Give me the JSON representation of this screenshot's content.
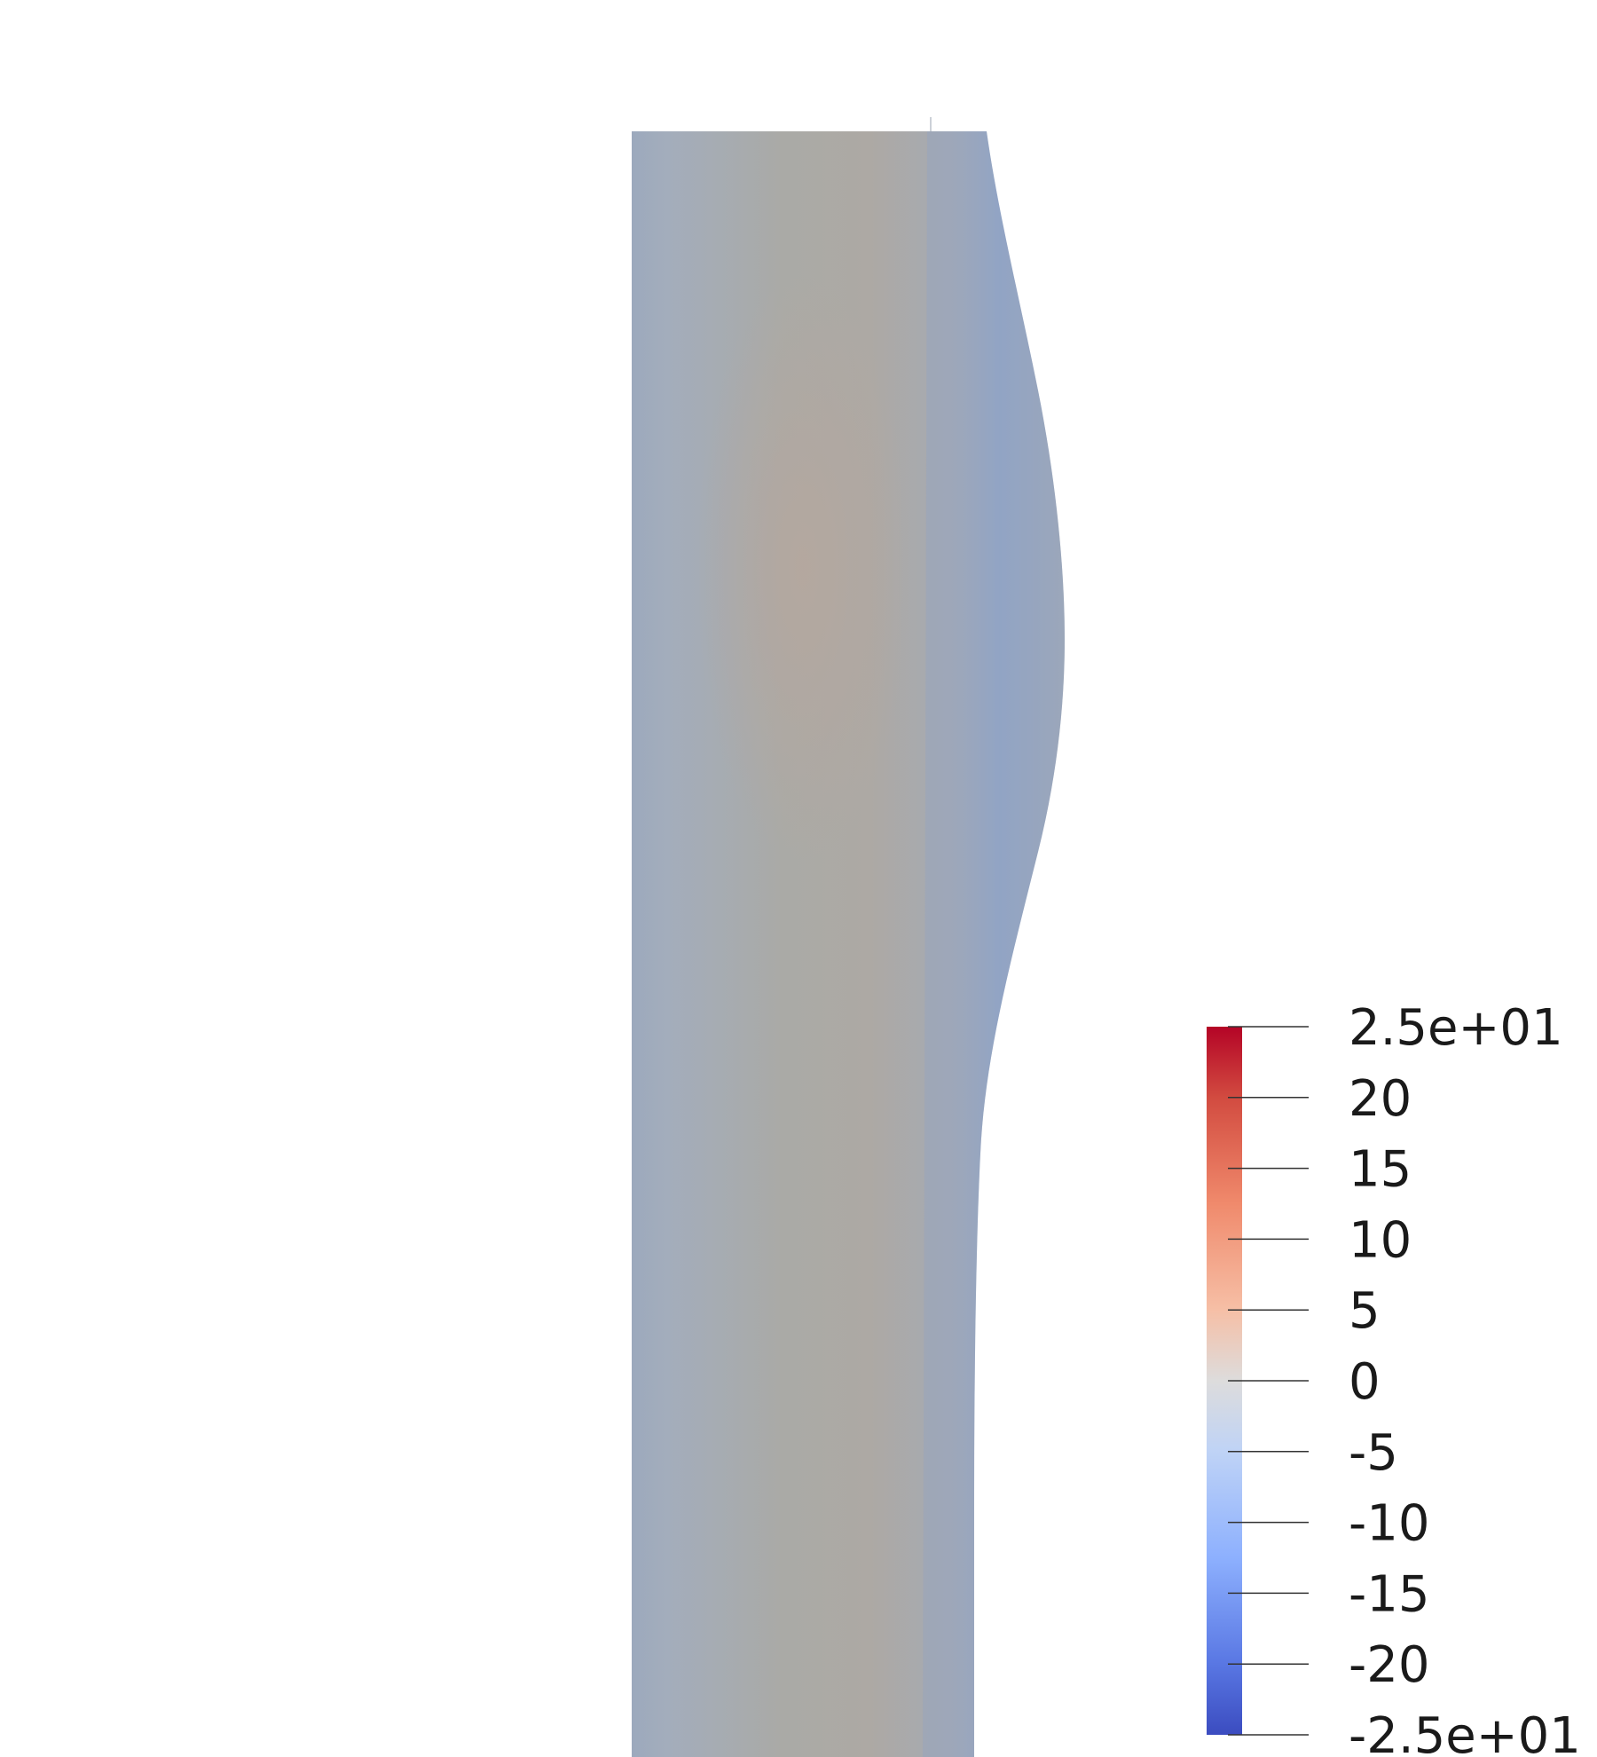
{
  "chart_data": {
    "type": "heatmap",
    "title": "",
    "colormap": "coolwarm",
    "colorbar": {
      "range": [
        -25,
        25
      ],
      "tick_values": [
        25,
        20,
        15,
        10,
        5,
        0,
        -5,
        -10,
        -15,
        -20,
        -25
      ],
      "tick_labels": [
        "2.5e+01",
        "20",
        "15",
        "10",
        "5",
        "0",
        "-5",
        "-10",
        "-15",
        "-20",
        "-2.5e+01"
      ],
      "colors": {
        "min": "#3b4cc0",
        "low": "#8db0fe",
        "mid": "#dddddd",
        "high": "#f49a7b",
        "max": "#b40426"
      },
      "placement": "right"
    },
    "field": {
      "description_values": "deformed column, near-zero to slightly negative values",
      "core_color": "#ada9a3",
      "edge_color": "#8fa3c2",
      "max_visible_value": 3,
      "min_visible_value": -12
    }
  }
}
